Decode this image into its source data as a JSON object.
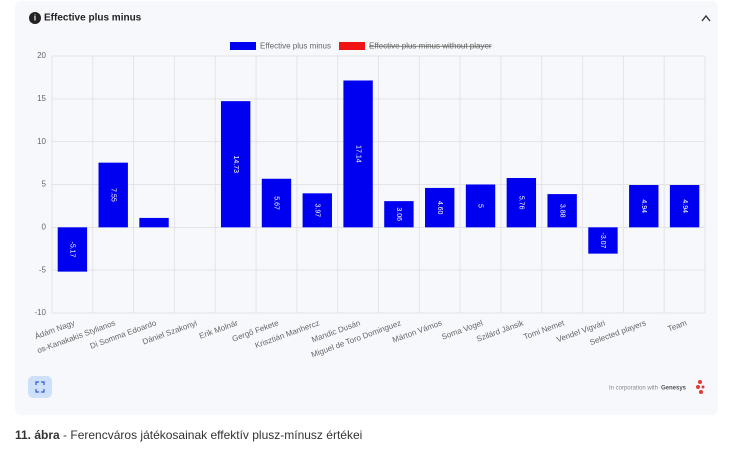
{
  "chart_data": {
    "type": "bar",
    "title": "Effective plus minus",
    "legend": [
      {
        "name": "Effective plus minus",
        "color": "#0000f0",
        "hidden": false
      },
      {
        "name": "Effective plus minus without player",
        "color": "#f01414",
        "hidden": true
      }
    ],
    "categories": [
      "Ádám Nagy",
      "os-Kanakakis Stylianos",
      "Di Somma Edoardo",
      "Dániel Szakonyi",
      "Erik Molnár",
      "Gergő Fekete",
      "Krisztián Manhercz",
      "Mandic Dusán",
      "Miguel de Toro Dominguez",
      "Márton Vámos",
      "Soma Vogel",
      "Szilárd Jánsik",
      "Tomi Nemet",
      "Vendel Vigvári",
      "Selected players",
      "Team"
    ],
    "values": [
      -5.17,
      7.55,
      1.1,
      0,
      14.73,
      5.67,
      3.97,
      17.14,
      3.06,
      4.6,
      5,
      5.76,
      3.88,
      -3.07,
      4.94,
      4.94
    ],
    "value_labels": [
      "-5.17",
      "7.55",
      null,
      null,
      "14.73",
      "5.67",
      "3.97",
      "17.14",
      "3.06",
      "4.60",
      "5",
      "5.76",
      "3.88",
      "-3.07",
      "4.94",
      "4.94"
    ],
    "color": "#0000f0",
    "ylim": [
      -10,
      20
    ],
    "yticks": [
      -10,
      -5,
      0,
      5,
      10,
      15,
      20
    ],
    "grid": true
  },
  "footer": {
    "text": "In corporation with",
    "brand": "Genesys"
  },
  "caption": {
    "label": "11. ábra",
    "text": "- Ferencváros játékosainak effektív plusz-mínusz értékei"
  }
}
